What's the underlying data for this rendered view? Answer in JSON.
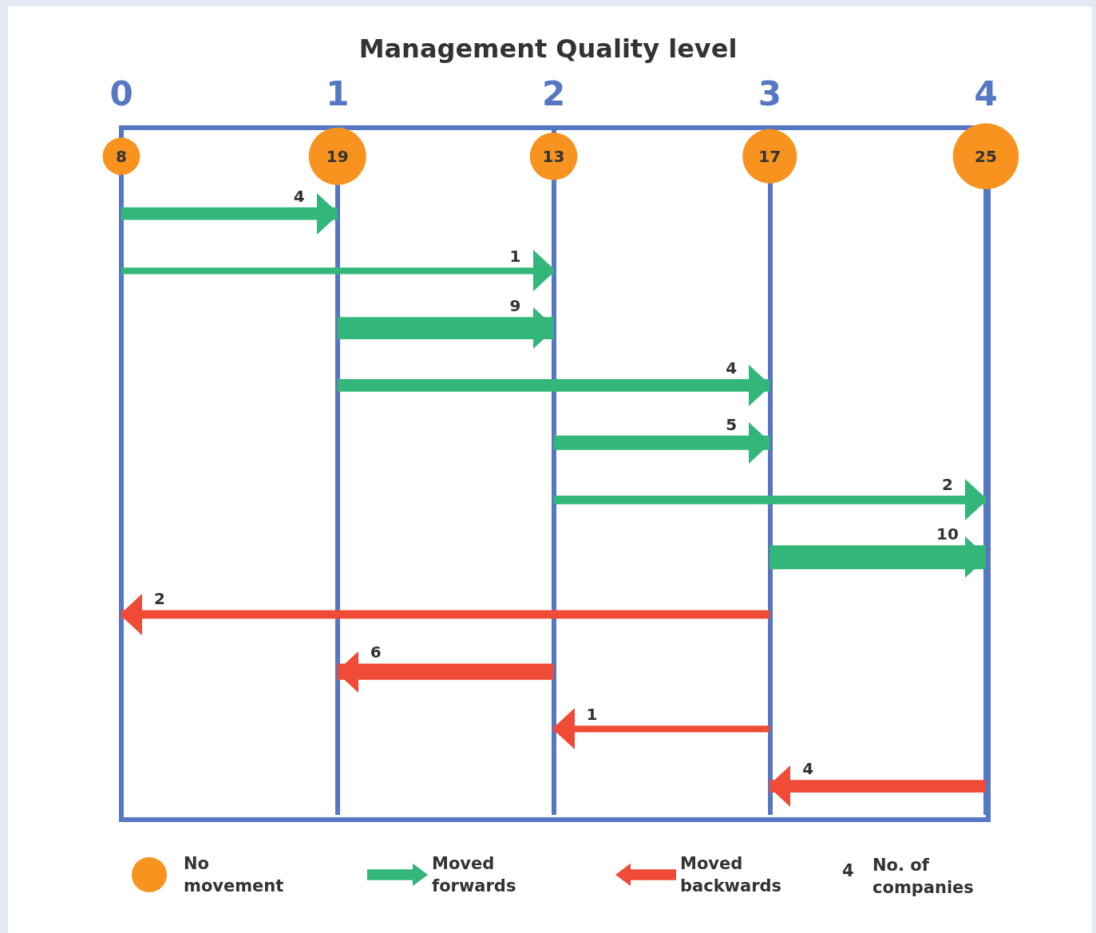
{
  "chart_data": {
    "type": "bar",
    "orientation": "horizontal",
    "title": "Management Quality level",
    "categories": [
      null,
      null,
      null,
      null,
      null,
      null,
      null,
      null,
      null,
      null,
      null,
      null
    ],
    "xlim": [
      0,
      4
    ],
    "xticks": [
      0,
      1,
      2,
      3,
      4
    ],
    "grid": "x",
    "legend": "bottom",
    "annotations": [
      "4",
      "1",
      "9",
      "4",
      "5",
      "2",
      "10",
      "2",
      "6",
      "1",
      "4",
      "4",
      "No. of companies"
    ],
    "series": [
      {
        "name": "No movement",
        "type": "bubble",
        "color": "#f7931e",
        "values": [
          0,
          null,
          null,
          null,
          null,
          null,
          null,
          null,
          null,
          null,
          null,
          null
        ],
        "sizes": [
          8,
          null,
          null,
          null,
          null,
          null,
          null,
          null,
          null,
          null,
          null,
          null
        ],
        "value_labels": [
          "8",
          null,
          null,
          null,
          null,
          null,
          null,
          null,
          null,
          null,
          null,
          null
        ]
      },
      {
        "type": "bubble",
        "color": "#f7931e",
        "values": [
          1,
          null,
          null,
          null,
          null,
          null,
          null,
          null,
          null,
          null,
          null,
          null
        ],
        "sizes": [
          19,
          null,
          null,
          null,
          null,
          null,
          null,
          null,
          null,
          null,
          null,
          null
        ],
        "value_labels": [
          "19",
          null,
          null,
          null,
          null,
          null,
          null,
          null,
          null,
          null,
          null,
          null
        ]
      },
      {
        "type": "bubble",
        "color": "#f7931e",
        "values": [
          2,
          null,
          null,
          null,
          null,
          null,
          null,
          null,
          null,
          null,
          null,
          null
        ],
        "sizes": [
          13,
          null,
          null,
          null,
          null,
          null,
          null,
          null,
          null,
          null,
          null,
          null
        ],
        "value_labels": [
          "13",
          null,
          null,
          null,
          null,
          null,
          null,
          null,
          null,
          null,
          null,
          null
        ]
      },
      {
        "type": "bubble",
        "color": "#f7931e",
        "values": [
          3,
          null,
          null,
          null,
          null,
          null,
          null,
          null,
          null,
          null,
          null,
          null
        ],
        "sizes": [
          17,
          null,
          null,
          null,
          null,
          null,
          null,
          null,
          null,
          null,
          null,
          null
        ],
        "value_labels": [
          "17",
          null,
          null,
          null,
          null,
          null,
          null,
          null,
          null,
          null,
          null,
          null
        ]
      },
      {
        "type": "bubble",
        "color": "#f7931e",
        "values": [
          4,
          null,
          null,
          null,
          null,
          null,
          null,
          null,
          null,
          null,
          null,
          null
        ],
        "sizes": [
          25,
          null,
          null,
          null,
          null,
          null,
          null,
          null,
          null,
          null,
          null,
          null
        ],
        "value_labels": [
          "25",
          null,
          null,
          null,
          null,
          null,
          null,
          null,
          null,
          null,
          null,
          null
        ]
      },
      {
        "name": "Moved forwards",
        "type": "bar",
        "color": "#33b679",
        "base": [
          null,
          0,
          0,
          1,
          1,
          2,
          2,
          3,
          null,
          null,
          null,
          null
        ],
        "values": [
          null,
          1,
          2,
          1,
          2,
          1,
          2,
          1,
          null,
          null,
          null,
          null
        ]
      },
      {
        "name": "Moved backwards",
        "type": "bar",
        "color": "#ef4b36",
        "base": [
          null,
          null,
          null,
          null,
          null,
          null,
          null,
          null,
          3,
          2,
          3,
          4
        ],
        "values": [
          null,
          null,
          null,
          null,
          null,
          null,
          null,
          null,
          -3,
          -1,
          -1,
          -1
        ]
      }
    ]
  }
}
